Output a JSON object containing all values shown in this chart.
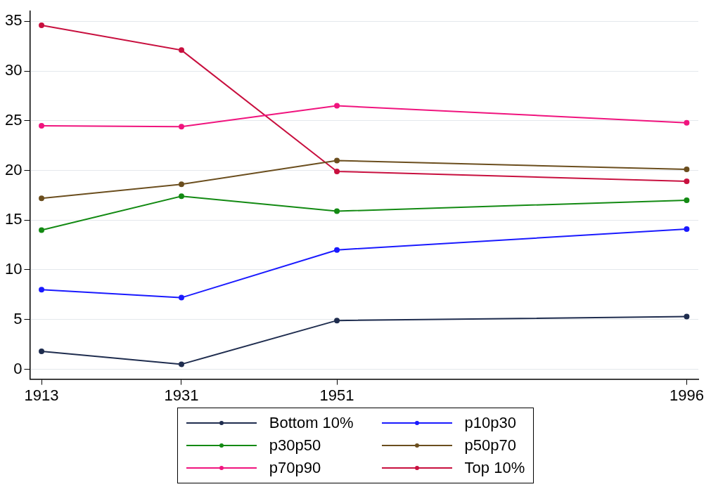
{
  "chart_data": {
    "type": "line",
    "x": [
      1913,
      1931,
      1951,
      1996
    ],
    "xlim": [
      1911.5,
      1997.5
    ],
    "xticks": [
      1913,
      1931,
      1951,
      1996
    ],
    "ylim": [
      -1,
      36
    ],
    "yticks": [
      0,
      5,
      10,
      15,
      20,
      25,
      30,
      35
    ],
    "grid": "y",
    "legend": "bottom",
    "marker": "circle",
    "line_style": "solid",
    "series": [
      {
        "name": "Bottom 10%",
        "color": "#1f2d4f",
        "values": [
          1.8,
          0.5,
          4.9,
          5.3
        ]
      },
      {
        "name": "p10p30",
        "color": "#1a1aff",
        "values": [
          8.0,
          7.2,
          12.0,
          14.1
        ]
      },
      {
        "name": "p30p50",
        "color": "#138a13",
        "values": [
          14.0,
          17.4,
          15.9,
          17.0
        ]
      },
      {
        "name": "p50p70",
        "color": "#6b4e1e",
        "values": [
          17.2,
          18.6,
          21.0,
          20.1
        ]
      },
      {
        "name": "p70p90",
        "color": "#f0147e",
        "values": [
          24.5,
          24.4,
          26.5,
          24.8
        ]
      },
      {
        "name": "Top 10%",
        "color": "#c8103f",
        "values": [
          34.6,
          32.1,
          19.9,
          18.9
        ]
      }
    ]
  }
}
